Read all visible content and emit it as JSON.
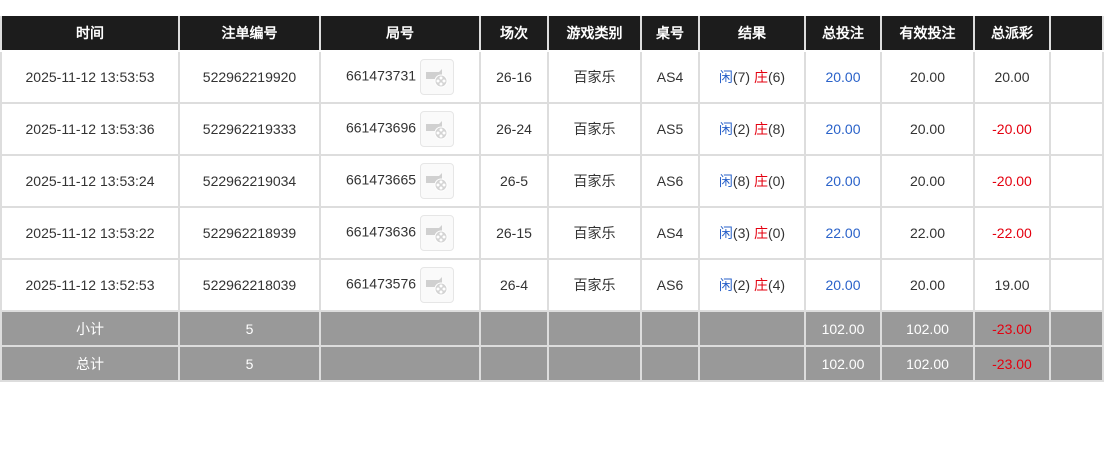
{
  "headers": [
    "时间",
    "注单编号",
    "局号",
    "场次",
    "游戏类别",
    "桌号",
    "结果",
    "总投注",
    "有效投注",
    "总派彩",
    ""
  ],
  "rows": [
    {
      "time": "2025-11-12 13:53:53",
      "bet_id": "522962219920",
      "round": "661473731",
      "session": "26-16",
      "game": "百家乐",
      "table": "AS4",
      "player": "闲",
      "player_score": "(7)",
      "banker": "庄",
      "banker_score": "(6)",
      "total_bet": "20.00",
      "valid_bet": "20.00",
      "payout": "20.00",
      "payout_negative": false
    },
    {
      "time": "2025-11-12 13:53:36",
      "bet_id": "522962219333",
      "round": "661473696",
      "session": "26-24",
      "game": "百家乐",
      "table": "AS5",
      "player": "闲",
      "player_score": "(2)",
      "banker": "庄",
      "banker_score": "(8)",
      "total_bet": "20.00",
      "valid_bet": "20.00",
      "payout": "-20.00",
      "payout_negative": true
    },
    {
      "time": "2025-11-12 13:53:24",
      "bet_id": "522962219034",
      "round": "661473665",
      "session": "26-5",
      "game": "百家乐",
      "table": "AS6",
      "player": "闲",
      "player_score": "(8)",
      "banker": "庄",
      "banker_score": "(0)",
      "total_bet": "20.00",
      "valid_bet": "20.00",
      "payout": "-20.00",
      "payout_negative": true
    },
    {
      "time": "2025-11-12 13:53:22",
      "bet_id": "522962218939",
      "round": "661473636",
      "session": "26-15",
      "game": "百家乐",
      "table": "AS4",
      "player": "闲",
      "player_score": "(3)",
      "banker": "庄",
      "banker_score": "(0)",
      "total_bet": "22.00",
      "valid_bet": "22.00",
      "payout": "-22.00",
      "payout_negative": true
    },
    {
      "time": "2025-11-12 13:52:53",
      "bet_id": "522962218039",
      "round": "661473576",
      "session": "26-4",
      "game": "百家乐",
      "table": "AS6",
      "player": "闲",
      "player_score": "(2)",
      "banker": "庄",
      "banker_score": "(4)",
      "total_bet": "20.00",
      "valid_bet": "20.00",
      "payout": "19.00",
      "payout_negative": false
    }
  ],
  "subtotal": {
    "label": "小计",
    "count": "5",
    "total_bet": "102.00",
    "valid_bet": "102.00",
    "payout": "-23.00"
  },
  "total": {
    "label": "总计",
    "count": "5",
    "total_bet": "102.00",
    "valid_bet": "102.00",
    "payout": "-23.00"
  },
  "colors": {
    "header_bg": "#1c1c1c",
    "player": "#2a62c9",
    "banker": "#e4000f",
    "footer_bg": "#999999"
  },
  "icons": {
    "replay": "video-replay-icon"
  }
}
